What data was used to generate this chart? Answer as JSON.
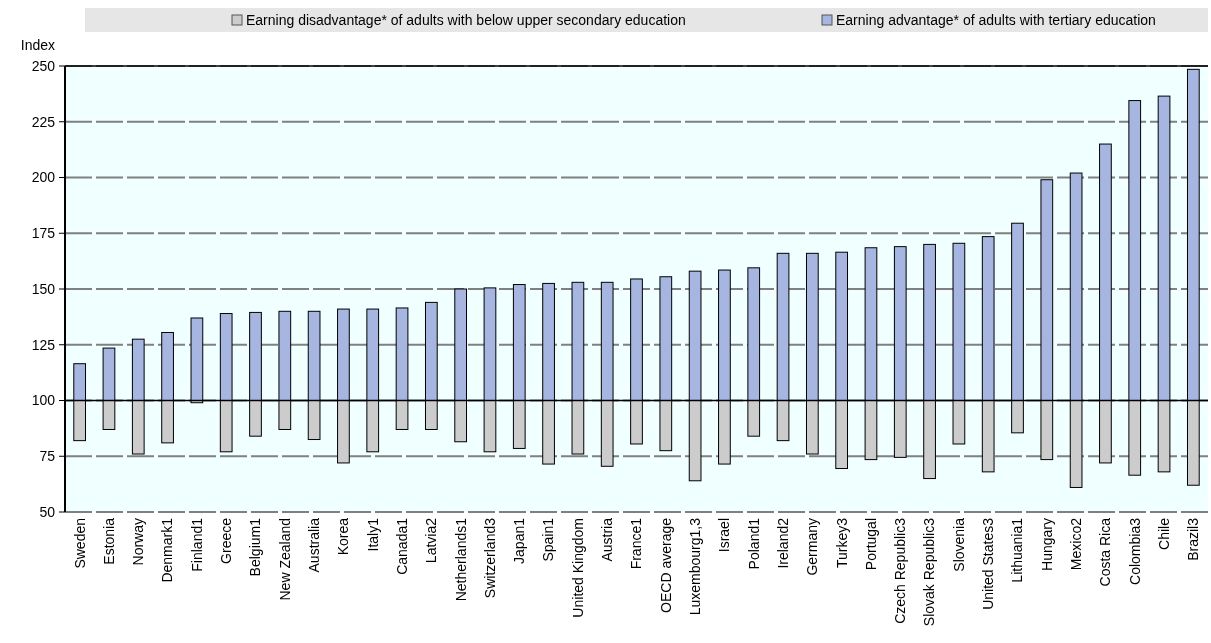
{
  "chart_data": {
    "type": "bar",
    "ylabel": "Index",
    "categories": [
      "Sweden",
      "Estonia",
      "Norway",
      "Denmark1",
      "Finland1",
      "Greece",
      "Belgium1",
      "New Zealand",
      "Australia",
      "Korea",
      "Italy1",
      "Canada1",
      "Latvia2",
      "Netherlands1",
      "Switzerland3",
      "Japan1",
      "Spain1",
      "United Kingdom",
      "Austria",
      "France1",
      "OECD average",
      "Luxembourg1,3",
      "Israel",
      "Poland1",
      "Ireland2",
      "Germany",
      "Turkey3",
      "Portugal",
      "Czech Republic3",
      "Slovak Republic3",
      "Slovenia",
      "United States3",
      "Lithuania1",
      "Hungary",
      "Mexico2",
      "Costa Rica",
      "Colombia3",
      "Chile",
      "Brazil3"
    ],
    "series": [
      {
        "name": "Earning disadvantage* of adults with below upper secondary education",
        "color": "#cccccc",
        "base": [
          82,
          87,
          76,
          81,
          99,
          77,
          84,
          87,
          82.5,
          72,
          77,
          87,
          87,
          81.5,
          77,
          78.5,
          71.5,
          76,
          70.5,
          80.5,
          77.5,
          64,
          71.5,
          84,
          82,
          76,
          69.5,
          73.5,
          74.5,
          65,
          80.5,
          68,
          85.5,
          73.5,
          61,
          72,
          66.5,
          68,
          62
        ],
        "values": [
          18,
          13,
          24,
          19,
          1,
          23,
          16,
          13,
          17.5,
          28,
          23,
          13,
          13,
          18.5,
          23,
          21.5,
          28.5,
          24,
          29.5,
          19.5,
          22.5,
          36,
          28.5,
          16,
          18,
          24,
          30.5,
          26.5,
          25.5,
          35,
          19.5,
          32,
          14.5,
          26.5,
          39,
          28,
          33.5,
          32,
          38
        ]
      },
      {
        "name": "Earning advantage* of adults with tertiary education",
        "color": "#a6b6e0",
        "base": [
          100,
          100,
          100,
          100,
          100,
          100,
          100,
          100,
          100,
          100,
          100,
          100,
          100,
          100,
          100,
          100,
          100,
          100,
          100,
          100,
          100,
          100,
          100,
          100,
          100,
          100,
          100,
          100,
          100,
          100,
          100,
          100,
          100,
          100,
          100,
          100,
          100,
          100,
          100
        ],
        "values": [
          16.5,
          23.5,
          27.5,
          30.5,
          37,
          39,
          39.5,
          40,
          40,
          41,
          41,
          41.5,
          44,
          50,
          50.5,
          52,
          52.5,
          53,
          53,
          54.5,
          55.5,
          58,
          58.5,
          59.5,
          66,
          66,
          66.5,
          68.5,
          69,
          70,
          70.5,
          73.5,
          79.5,
          99,
          102,
          115,
          134.5,
          136.5,
          148.5
        ]
      }
    ],
    "ylim": [
      50,
      250
    ],
    "yticks": [
      50,
      75,
      100,
      125,
      150,
      175,
      200,
      225,
      250
    ],
    "grid": "y",
    "legend": "top",
    "ref_lines": [
      {
        "axis": "y",
        "value": 100,
        "color": "#000000"
      }
    ]
  }
}
